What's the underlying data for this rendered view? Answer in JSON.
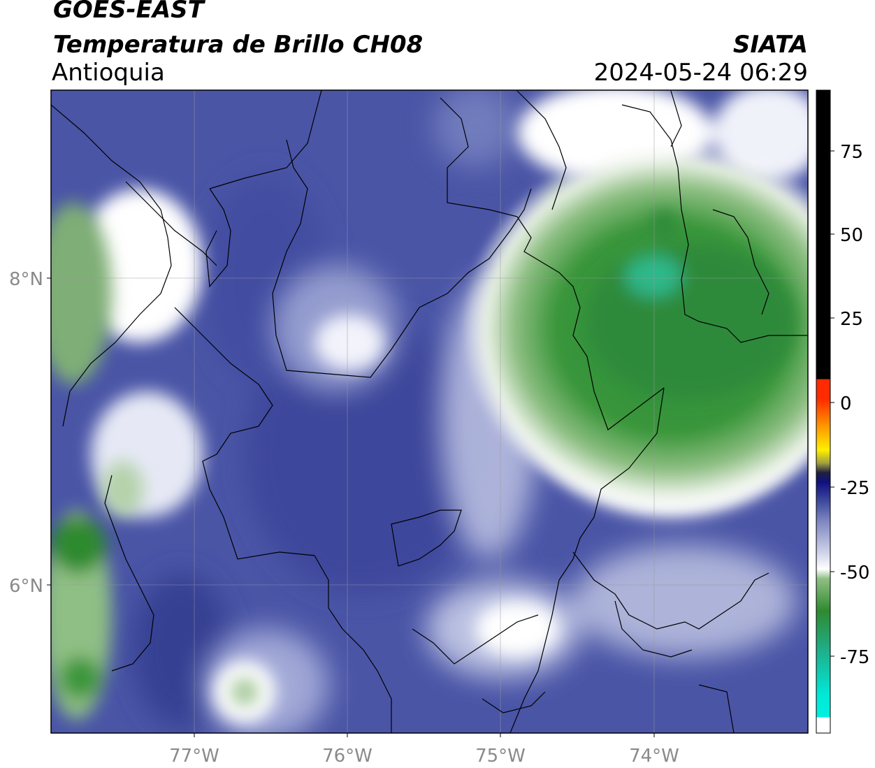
{
  "header": {
    "satellite": "GOES-EAST",
    "product": "Temperatura de Brillo CH08",
    "region": "Antioquia",
    "agency": "SIATA",
    "datetime": "2024-05-24 06:29"
  },
  "map": {
    "lon_ticks": [
      "77°W",
      "76°W",
      "75°W",
      "74°W"
    ],
    "lat_ticks": [
      "8°N",
      "6°N"
    ],
    "colors": {
      "background_low": "#3f4b9e",
      "mid_light": "#8a95c8",
      "white": "#ffffff",
      "green_light": "#9cc58f",
      "green_dark": "#2f8a2f",
      "cyan_core": "#2fc7a0"
    }
  },
  "colorbar": {
    "tick_labels": [
      "75",
      "50",
      "25",
      "0",
      "-25",
      "-50",
      "-75"
    ],
    "colors": {
      "warm": "#000000",
      "red": "#ff2a00",
      "orange": "#ff9000",
      "yellow": "#fff000",
      "dark_blue": "#101080",
      "blue": "#3f4b9e",
      "white": "#ffffff",
      "green": "#2f8a2f",
      "cyan": "#00e8e0"
    }
  }
}
